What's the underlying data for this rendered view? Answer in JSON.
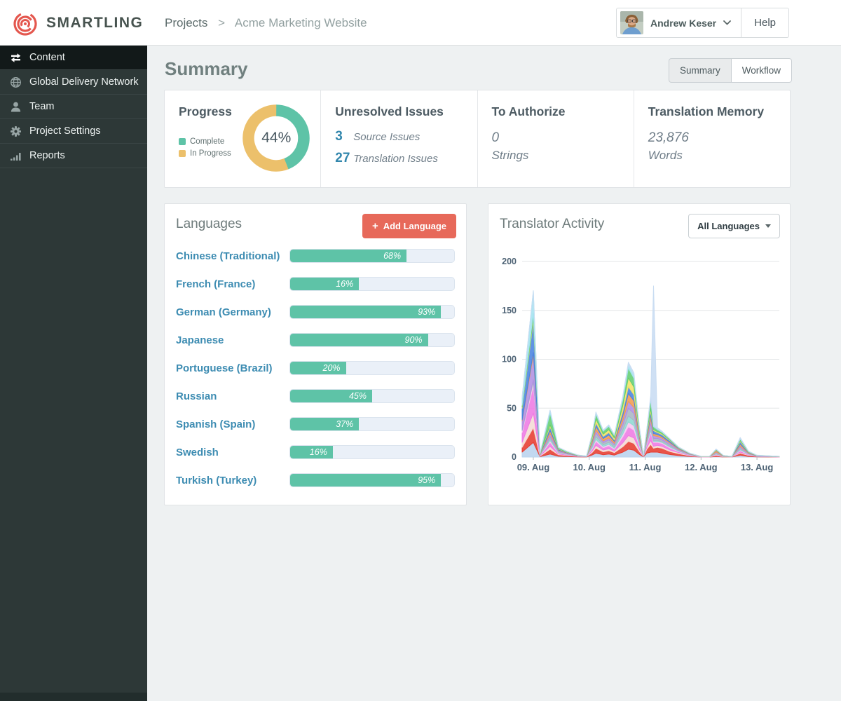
{
  "header": {
    "logo_text": "SMARTLING",
    "breadcrumb": {
      "parent": "Projects",
      "separator": ">",
      "current": "Acme Marketing Website"
    },
    "user_name": "Andrew Keser",
    "help_label": "Help"
  },
  "sidebar": {
    "items": [
      {
        "label": "Content",
        "icon": "content-arrows-icon",
        "active": true
      },
      {
        "label": "Global Delivery Network",
        "icon": "globe-icon",
        "active": false
      },
      {
        "label": "Team",
        "icon": "person-icon",
        "active": false
      },
      {
        "label": "Project Settings",
        "icon": "gear-icon",
        "active": false
      },
      {
        "label": "Reports",
        "icon": "bar-chart-icon",
        "active": false
      }
    ]
  },
  "page": {
    "title": "Summary",
    "view_toggle": [
      {
        "label": "Summary",
        "active": true
      },
      {
        "label": "Workflow",
        "active": false
      }
    ]
  },
  "cards": {
    "progress": {
      "title": "Progress",
      "percent": 44,
      "percent_label": "44%",
      "legend": [
        {
          "label": "Complete",
          "color": "#5ec3a7"
        },
        {
          "label": "In Progress",
          "color": "#ecc06b"
        }
      ]
    },
    "unresolved": {
      "title": "Unresolved Issues",
      "rows": [
        {
          "count": "3",
          "label": "Source Issues"
        },
        {
          "count": "27",
          "label": "Translation Issues"
        }
      ]
    },
    "to_authorize": {
      "title": "To Authorize",
      "value": "0",
      "unit": "Strings"
    },
    "translation_memory": {
      "title": "Translation Memory",
      "value": "23,876",
      "unit": "Words"
    }
  },
  "languages": {
    "title": "Languages",
    "add_button_label": "Add Language",
    "items": [
      {
        "label": "Chinese (Traditional)",
        "percent_label": "68%",
        "fill_percent": 71
      },
      {
        "label": "French (France)",
        "percent_label": "16%",
        "fill_percent": 42
      },
      {
        "label": "German (Germany)",
        "percent_label": "93%",
        "fill_percent": 92
      },
      {
        "label": "Japanese",
        "percent_label": "90%",
        "fill_percent": 84
      },
      {
        "label": "Portuguese (Brazil)",
        "percent_label": "20%",
        "fill_percent": 34
      },
      {
        "label": "Russian",
        "percent_label": "45%",
        "fill_percent": 50
      },
      {
        "label": "Spanish (Spain)",
        "percent_label": "37%",
        "fill_percent": 42
      },
      {
        "label": "Swedish",
        "percent_label": "16%",
        "fill_percent": 26
      },
      {
        "label": "Turkish (Turkey)",
        "percent_label": "95%",
        "fill_percent": 92
      }
    ]
  },
  "translator_activity": {
    "title": "Translator Activity",
    "filter_label": "All Languages"
  },
  "colors": {
    "accent_teal": "#5ec3a7",
    "accent_yellow": "#ecc06b",
    "accent_coral": "#e7695a",
    "link_blue": "#3d8cb2",
    "logo_red": "#e4574e"
  },
  "chart_data": {
    "type": "area",
    "stacked": true,
    "title": "Translator Activity",
    "x_tick_labels": [
      "09. Aug",
      "10. Aug",
      "11. Aug",
      "12. Aug",
      "13. Aug"
    ],
    "x_tick_positions": [
      0,
      1,
      2,
      3,
      4
    ],
    "x_range": [
      -0.2,
      4.4
    ],
    "ylim": [
      0,
      200
    ],
    "y_ticks": [
      0,
      50,
      100,
      150,
      200
    ],
    "grid": true,
    "legend": "none",
    "x": [
      -0.2,
      0,
      0.12,
      0.3,
      0.45,
      0.6,
      0.8,
      0.95,
      1.05,
      1.12,
      1.25,
      1.35,
      1.45,
      1.6,
      1.7,
      1.8,
      1.9,
      1.97,
      2.03,
      2.1,
      2.15,
      2.22,
      2.3,
      2.45,
      2.6,
      2.8,
      3.0,
      3.15,
      3.27,
      3.4,
      3.55,
      3.7,
      3.85,
      4.0,
      4.4
    ],
    "series": [
      {
        "name": "series-1",
        "color": "#b9d3ee",
        "values": [
          5,
          15,
          0.4,
          3,
          0.8,
          0.5,
          0.2,
          0.1,
          2,
          4,
          2.4,
          3,
          2,
          5,
          8,
          7,
          2.5,
          0.2,
          4,
          5,
          5,
          5,
          4,
          2.5,
          1.5,
          0.5,
          0.1,
          0.1,
          0.5,
          0.1,
          0.1,
          2,
          0.6,
          0.2,
          0.1
        ]
      },
      {
        "name": "series-2",
        "color": "#e63c30",
        "values": [
          5,
          15,
          0.4,
          5,
          1.5,
          1,
          0.3,
          0.2,
          2.5,
          5,
          3,
          3.5,
          2.5,
          5.5,
          8,
          7,
          3,
          0.3,
          4,
          8,
          4,
          5,
          5,
          3,
          2,
          0.8,
          0.1,
          0.1,
          1,
          0.2,
          0.1,
          2,
          1,
          0.3,
          0.1
        ]
      },
      {
        "name": "series-3",
        "color": "#f4dbd5",
        "values": [
          5,
          15,
          0.3,
          3,
          0.7,
          0.4,
          0.1,
          0.05,
          1.5,
          3,
          1.8,
          2,
          1.5,
          4,
          6,
          5.5,
          2,
          0.1,
          2,
          4,
          2,
          2,
          2,
          1.5,
          1,
          0.3,
          0.05,
          0.05,
          0.7,
          0.1,
          0.05,
          1,
          0.4,
          0.1,
          0.05
        ]
      },
      {
        "name": "series-4",
        "color": "#ee7ae4",
        "values": [
          10,
          28,
          0.4,
          4,
          1,
          0.6,
          0.2,
          0.1,
          2,
          4,
          2.4,
          3,
          2,
          6,
          9,
          8,
          3,
          0.2,
          3,
          8,
          4,
          3,
          3,
          2,
          1,
          0.4,
          0.05,
          0.05,
          0.5,
          0.1,
          0.05,
          1.5,
          0.5,
          0.2,
          0.05
        ]
      },
      {
        "name": "series-5",
        "color": "#f6c9f0",
        "values": [
          2,
          4,
          0.2,
          2,
          0.5,
          0.3,
          0.1,
          0.05,
          1,
          2,
          1.2,
          1.5,
          1,
          3,
          5,
          4.5,
          1.5,
          0.1,
          1,
          2,
          1,
          1,
          1,
          1,
          0.5,
          0.2,
          0.05,
          0.05,
          0.3,
          0.05,
          0.05,
          0.8,
          0.3,
          0.1,
          0.05
        ]
      },
      {
        "name": "series-6",
        "color": "#8fd8d2",
        "values": [
          0,
          0,
          0.2,
          2,
          0.5,
          0.3,
          0.1,
          0.05,
          1.5,
          3,
          1.8,
          2,
          1.5,
          4,
          6,
          5.5,
          2,
          0.1,
          1,
          3,
          1,
          1,
          1,
          1,
          0.5,
          0.2,
          0.05,
          0.05,
          0.3,
          0.05,
          0.05,
          1,
          0.3,
          0.1,
          0.05
        ]
      },
      {
        "name": "series-7",
        "color": "#aab6c4",
        "values": [
          1,
          2,
          0.3,
          2,
          0.7,
          0.4,
          0.1,
          0.05,
          2,
          3.5,
          2.1,
          2.5,
          2,
          5,
          8,
          7,
          2.5,
          0.1,
          2,
          4,
          2,
          2,
          1.5,
          1.5,
          0.7,
          0.3,
          0.05,
          0.05,
          1.5,
          0.3,
          0.05,
          1.5,
          0.4,
          0.1,
          0.05
        ]
      },
      {
        "name": "series-8",
        "color": "#b18fe2",
        "values": [
          9,
          25,
          0.3,
          3,
          0.8,
          0.5,
          0.2,
          0.1,
          1.5,
          3,
          1.8,
          2,
          1.5,
          4.5,
          7,
          6,
          2,
          0.1,
          2,
          5,
          3,
          2,
          2,
          1.5,
          0.8,
          0.3,
          0.05,
          0.05,
          0.5,
          0.1,
          0.05,
          1.5,
          0.4,
          0.1,
          0.05
        ]
      },
      {
        "name": "series-9",
        "color": "#f19b51",
        "values": [
          1,
          3,
          0.3,
          3,
          0.7,
          0.4,
          0.1,
          0.05,
          2,
          4,
          2.4,
          3,
          2,
          5,
          8,
          7,
          2.5,
          0.1,
          2,
          4,
          2,
          2,
          1.5,
          1,
          0.7,
          0.3,
          0.05,
          0.05,
          1.5,
          0.3,
          0.05,
          2,
          0.5,
          0.1,
          0.05
        ]
      },
      {
        "name": "series-10",
        "color": "#4a84e0",
        "values": [
          12,
          32,
          0.3,
          4,
          0.8,
          0.5,
          0.2,
          0.1,
          1.5,
          3.5,
          2.1,
          2.5,
          1.5,
          4.5,
          7,
          6,
          2,
          0.2,
          2,
          4,
          3,
          2,
          2,
          1.5,
          0.6,
          0.3,
          0.05,
          0.05,
          0.3,
          0.1,
          0.05,
          2.5,
          0.5,
          0.2,
          0.05
        ]
      },
      {
        "name": "series-11",
        "color": "#f3e268",
        "values": [
          1,
          3,
          0.2,
          2,
          0.5,
          0.3,
          0.1,
          0.05,
          2,
          4,
          2.4,
          3,
          2,
          6,
          9,
          8,
          2.5,
          0.1,
          1.5,
          3,
          1,
          1,
          1,
          0.5,
          0.3,
          0.1,
          0.05,
          0.05,
          0.3,
          0.05,
          0.05,
          1,
          0.3,
          0.1,
          0.05
        ]
      },
      {
        "name": "series-12",
        "color": "#63ce72",
        "values": [
          2,
          5,
          0.3,
          12,
          1,
          0.5,
          0.2,
          0.1,
          2.5,
          5,
          3,
          3.5,
          2.5,
          6,
          10,
          9,
          3,
          0.2,
          2.5,
          9,
          3,
          2,
          1.5,
          1,
          0.4,
          0.2,
          0.05,
          0.05,
          0.5,
          0.1,
          0.05,
          1.5,
          0.4,
          0.1,
          0.05
        ]
      },
      {
        "name": "series-13",
        "color": "#a5e3f0",
        "values": [
          8,
          23,
          0.2,
          3,
          0.3,
          0.2,
          0.1,
          0.05,
          0.8,
          1.5,
          0.9,
          1,
          0.8,
          2.5,
          4,
          3.5,
          1,
          0.1,
          1,
          2,
          1,
          1,
          0.5,
          0.3,
          0.2,
          0.05,
          0.02,
          0.02,
          0.2,
          0.02,
          0.02,
          0.8,
          0.2,
          0.1,
          0.02
        ]
      },
      {
        "name": "series-14",
        "color": "#c8dcf2",
        "values": [
          1,
          0,
          0.2,
          0,
          0.2,
          0.1,
          0.05,
          0.02,
          0.2,
          0.5,
          0.3,
          0.5,
          0.2,
          1,
          2,
          2,
          0.5,
          0.1,
          1,
          2,
          143,
          1,
          0.5,
          0.2,
          0.1,
          0.05,
          0.02,
          0.02,
          0.2,
          0.02,
          0.02,
          0.9,
          0.2,
          0.1,
          0.02
        ]
      }
    ]
  }
}
